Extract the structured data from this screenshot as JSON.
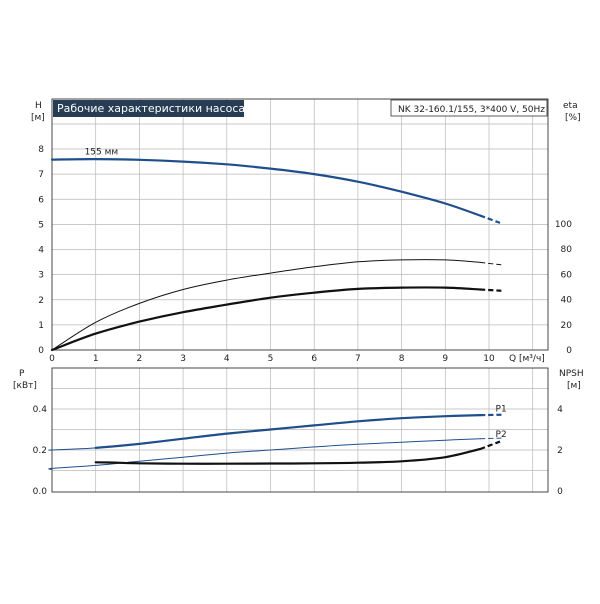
{
  "chart_data": [
    {
      "type": "line",
      "title": "Рабочие характеристики насоса",
      "subtitle": "NK 32-160.1/155, 3*400 V, 50Hz",
      "xlabel": "Q",
      "xunit": "[м³/ч]",
      "ylabel": "H",
      "yunit": "[м]",
      "ylabel_right": "eta",
      "yunit_right": "[%]",
      "xlim": [
        0,
        11
      ],
      "ylim": [
        0,
        9
      ],
      "ylim_right": [
        0,
        225
      ],
      "x_ticks": [
        "0",
        "1",
        "2",
        "3",
        "4",
        "5",
        "6",
        "7",
        "8",
        "9",
        "10"
      ],
      "y_ticks": [
        "0",
        "1",
        "2",
        "3",
        "4",
        "5",
        "6",
        "7",
        "8"
      ],
      "y_ticks_right": [
        "0",
        "20",
        "40",
        "60",
        "80",
        "100"
      ],
      "grid": true,
      "annotations": [
        {
          "text": "155 мм",
          "x": 0.7,
          "y": 7.7
        }
      ],
      "series": [
        {
          "key": "head",
          "axis": "left",
          "color": "#1f4e8c",
          "width": 2.2,
          "dashed_after": 9.8,
          "x": [
            0,
            1,
            2,
            3,
            4,
            5,
            6,
            7,
            8,
            9,
            9.8,
            10.3
          ],
          "y": [
            7.58,
            7.6,
            7.57,
            7.5,
            7.39,
            7.22,
            7.0,
            6.7,
            6.3,
            5.83,
            5.35,
            5.03
          ]
        },
        {
          "key": "eta_upper",
          "axis": "right",
          "color": "#111111",
          "width": 1.0,
          "dashed_after": 9.8,
          "x": [
            0,
            1,
            2,
            3,
            4,
            5,
            6,
            7,
            8,
            9,
            9.8,
            10.3
          ],
          "y": [
            0,
            22,
            37,
            48,
            55.5,
            61,
            66,
            70,
            71.5,
            71.5,
            69.5,
            67.5
          ]
        },
        {
          "key": "eta",
          "axis": "right",
          "color": "#111111",
          "width": 2.2,
          "dashed_after": 9.8,
          "x": [
            0,
            1,
            2,
            3,
            4,
            5,
            6,
            7,
            8,
            9,
            9.8,
            10.3
          ],
          "y": [
            0,
            13,
            22.5,
            30,
            36,
            41.5,
            45.5,
            48.5,
            49.5,
            49.5,
            48,
            47
          ]
        }
      ]
    },
    {
      "type": "line",
      "xlabel": "",
      "ylabel": "P",
      "yunit": "[кВт]",
      "ylabel_right": "NPSH",
      "yunit_right": "[м]",
      "xlim": [
        0,
        11
      ],
      "ylim": [
        0,
        0.55
      ],
      "ylim_right": [
        0,
        5.5
      ],
      "y_ticks": [
        "0.0",
        "0.2",
        "0.4"
      ],
      "y_ticks_right": [
        "0",
        "2",
        "4"
      ],
      "grid": true,
      "series": [
        {
          "key": "p1_thin",
          "name": "",
          "axis": "left",
          "color": "#1f4e8c",
          "width": 1.0,
          "dashed_after": 9.8,
          "x": [
            -0.2,
            0,
            1,
            2,
            3,
            4,
            5,
            6,
            7,
            8,
            9,
            9.8,
            10.3
          ],
          "y": [
            0.2,
            0.2,
            0.21,
            0.23,
            0.255,
            0.28,
            0.3,
            0.32,
            0.34,
            0.355,
            0.365,
            0.37,
            0.372
          ]
        },
        {
          "name": "P1",
          "axis": "left",
          "color": "#1f4e8c",
          "width": 2.2,
          "dashed_after": 9.8,
          "x": [
            1,
            2,
            3,
            4,
            5,
            6,
            7,
            8,
            9,
            9.8,
            10.3
          ],
          "y": [
            0.21,
            0.23,
            0.255,
            0.28,
            0.3,
            0.32,
            0.34,
            0.355,
            0.365,
            0.37,
            0.372
          ]
        },
        {
          "name": "P2",
          "axis": "left",
          "color": "#1f4e8c",
          "width": 1.0,
          "dashed_after": 9.8,
          "x": [
            -0.2,
            0,
            1,
            2,
            3,
            4,
            5,
            6,
            7,
            8,
            9,
            9.8,
            10.3
          ],
          "y": [
            0.105,
            0.11,
            0.125,
            0.145,
            0.165,
            0.185,
            0.2,
            0.215,
            0.228,
            0.238,
            0.248,
            0.255,
            0.258
          ]
        },
        {
          "key": "npsh",
          "name": "",
          "axis": "right",
          "color": "#111111",
          "width": 2.2,
          "dashed_after": 9.8,
          "x": [
            1,
            1.5,
            2,
            3,
            4,
            5,
            6,
            7,
            8,
            9,
            9.8,
            10.3
          ],
          "y": [
            1.4,
            1.38,
            1.35,
            1.33,
            1.33,
            1.34,
            1.35,
            1.38,
            1.45,
            1.65,
            2.05,
            2.45
          ]
        }
      ]
    }
  ]
}
